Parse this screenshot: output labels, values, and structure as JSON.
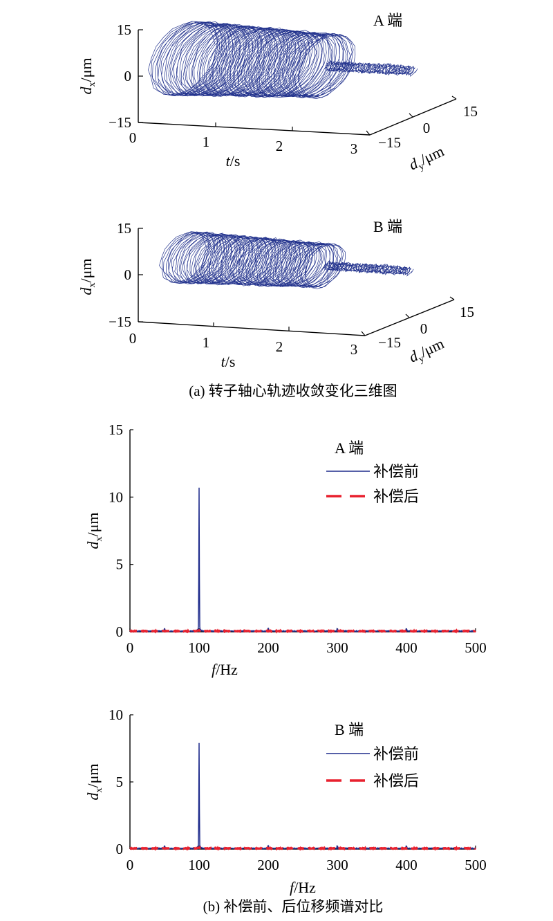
{
  "chart_data": [
    {
      "type": "line3d",
      "panel": "A 端",
      "xlabel": "t/s",
      "ylabel": "d_x/μm",
      "zlabel": "d_y/μm",
      "t_ticks": [
        "0",
        "1",
        "2",
        "3"
      ],
      "dx_ticks": [
        "15",
        "0",
        "−15"
      ],
      "dy_ticks": [
        "−15",
        "0",
        "15"
      ],
      "t_range": [
        0,
        3
      ],
      "dx_range": [
        -15,
        15
      ],
      "dy_range": [
        -15,
        15
      ],
      "orbit_amplitude_before": 11,
      "converge_time": 1.9,
      "orbit_amplitude_after": 1.2
    },
    {
      "type": "line3d",
      "panel": "B 端",
      "xlabel": "t/s",
      "ylabel": "d_x/μm",
      "zlabel": "d_y/μm",
      "t_ticks": [
        "0",
        "1",
        "2",
        "3"
      ],
      "dx_ticks": [
        "15",
        "0",
        "−15"
      ],
      "dy_ticks": [
        "−15",
        "0",
        "15"
      ],
      "t_range": [
        0,
        3
      ],
      "dx_range": [
        -15,
        15
      ],
      "dy_range": [
        -15,
        15
      ],
      "orbit_amplitude_before": 7.5,
      "converge_time": 1.9,
      "orbit_amplitude_after": 1.0
    },
    {
      "type": "line",
      "panel": "A 端",
      "xlabel": "f/Hz",
      "ylabel": "d_x/μm",
      "xlim": [
        0,
        500
      ],
      "ylim": [
        0,
        15
      ],
      "x_ticks": [
        "0",
        "100",
        "200",
        "300",
        "400",
        "500"
      ],
      "y_ticks": [
        "0",
        "5",
        "10",
        "15"
      ],
      "series": [
        {
          "name": "补偿前",
          "color": "#1f2c8c",
          "style": "solid",
          "peak_x": 100,
          "peak_y": 10.4
        },
        {
          "name": "补偿后",
          "color": "#e8212e",
          "style": "dashed",
          "peak_x": 100,
          "peak_y": 0.1
        }
      ]
    },
    {
      "type": "line",
      "panel": "B 端",
      "xlabel": "f/Hz",
      "ylabel": "d_x/μm",
      "xlim": [
        0,
        500
      ],
      "ylim": [
        0,
        10
      ],
      "x_ticks": [
        "0",
        "100",
        "200",
        "300",
        "400",
        "500"
      ],
      "y_ticks": [
        "0",
        "5",
        "10"
      ],
      "series": [
        {
          "name": "补偿前",
          "color": "#1f2c8c",
          "style": "solid",
          "peak_x": 100,
          "peak_y": 7.6
        },
        {
          "name": "补偿后",
          "color": "#e8212e",
          "style": "dashed",
          "peak_x": 100,
          "peak_y": 0.1
        }
      ]
    }
  ],
  "captions": {
    "a": "(a) 转子轴心轨迹收敛变化三维图",
    "b": "(b) 补偿前、后位移频谱对比"
  },
  "labels": {
    "t": "t",
    "t_unit": "/s",
    "d": "d",
    "x_sub": "x",
    "y_sub": "y",
    "um": "/μm",
    "f": "f",
    "f_unit": "/Hz"
  }
}
